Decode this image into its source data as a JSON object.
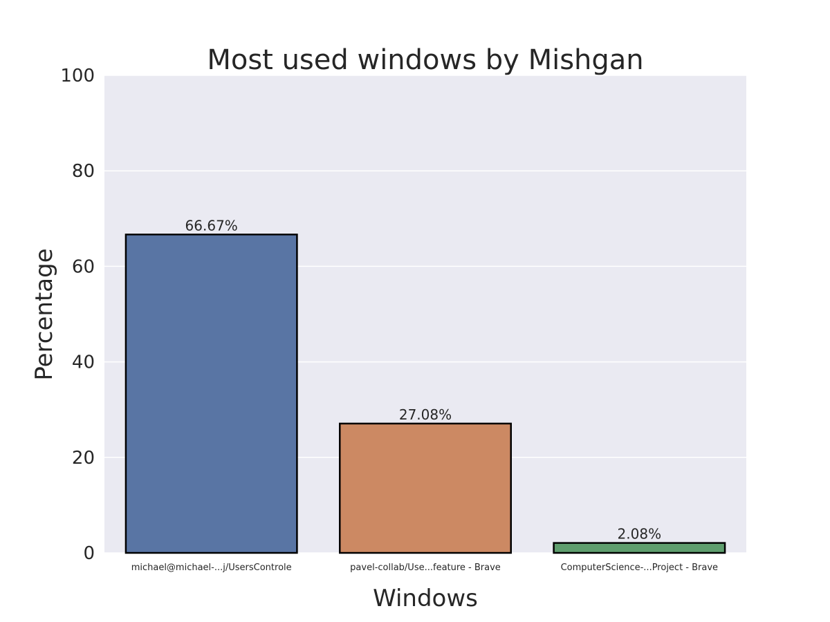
{
  "chart_data": {
    "type": "bar",
    "title": "Most used windows by Mishgan",
    "xlabel": "Windows",
    "ylabel": "Percentage",
    "categories": [
      "michael@michael-...j/UsersControle",
      "pavel-collab/Use...feature - Brave",
      "ComputerScience-...Project - Brave"
    ],
    "values": [
      66.67,
      27.08,
      2.08
    ],
    "data_labels": [
      "66.67%",
      "27.08%",
      "2.08%"
    ],
    "ylim": [
      0,
      100
    ],
    "yticks": [
      "0",
      "20",
      "40",
      "60",
      "80",
      "100"
    ],
    "grid": true,
    "colors": [
      "#5975a4",
      "#cc8963",
      "#5f9e6e"
    ],
    "background_color": "#eaeaf2",
    "grid_color": "#ffffff",
    "bar_edge_color": "#000000"
  }
}
